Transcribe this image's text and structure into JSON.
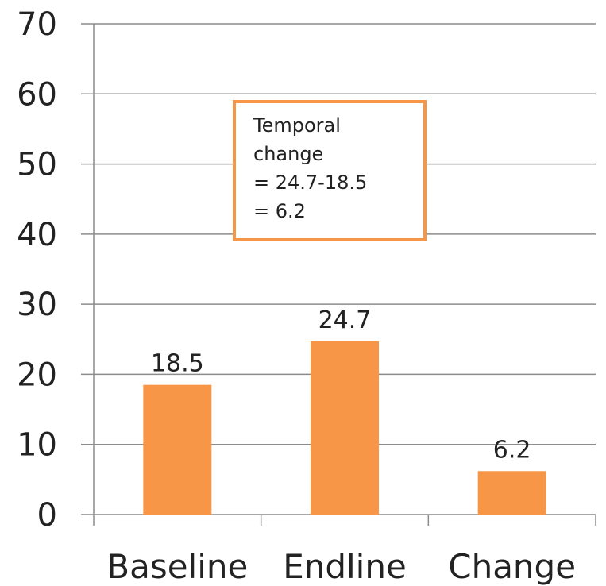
{
  "chart_data": {
    "type": "bar",
    "categories": [
      "Baseline",
      "Endline",
      "Change"
    ],
    "values": [
      18.5,
      24.7,
      6.2
    ],
    "data_labels": [
      "18.5",
      "24.7",
      "6.2"
    ],
    "ylim": [
      0,
      70
    ],
    "yticks": [
      0,
      10,
      20,
      30,
      40,
      50,
      60,
      70
    ],
    "grid": true,
    "bar_color": "#f79646",
    "title": "",
    "xlabel": "",
    "ylabel": ""
  },
  "annotation": {
    "lines": [
      "Temporal",
      "change",
      "= 24.7-18.5",
      "= 6.2"
    ],
    "border_color": "#f79646"
  }
}
